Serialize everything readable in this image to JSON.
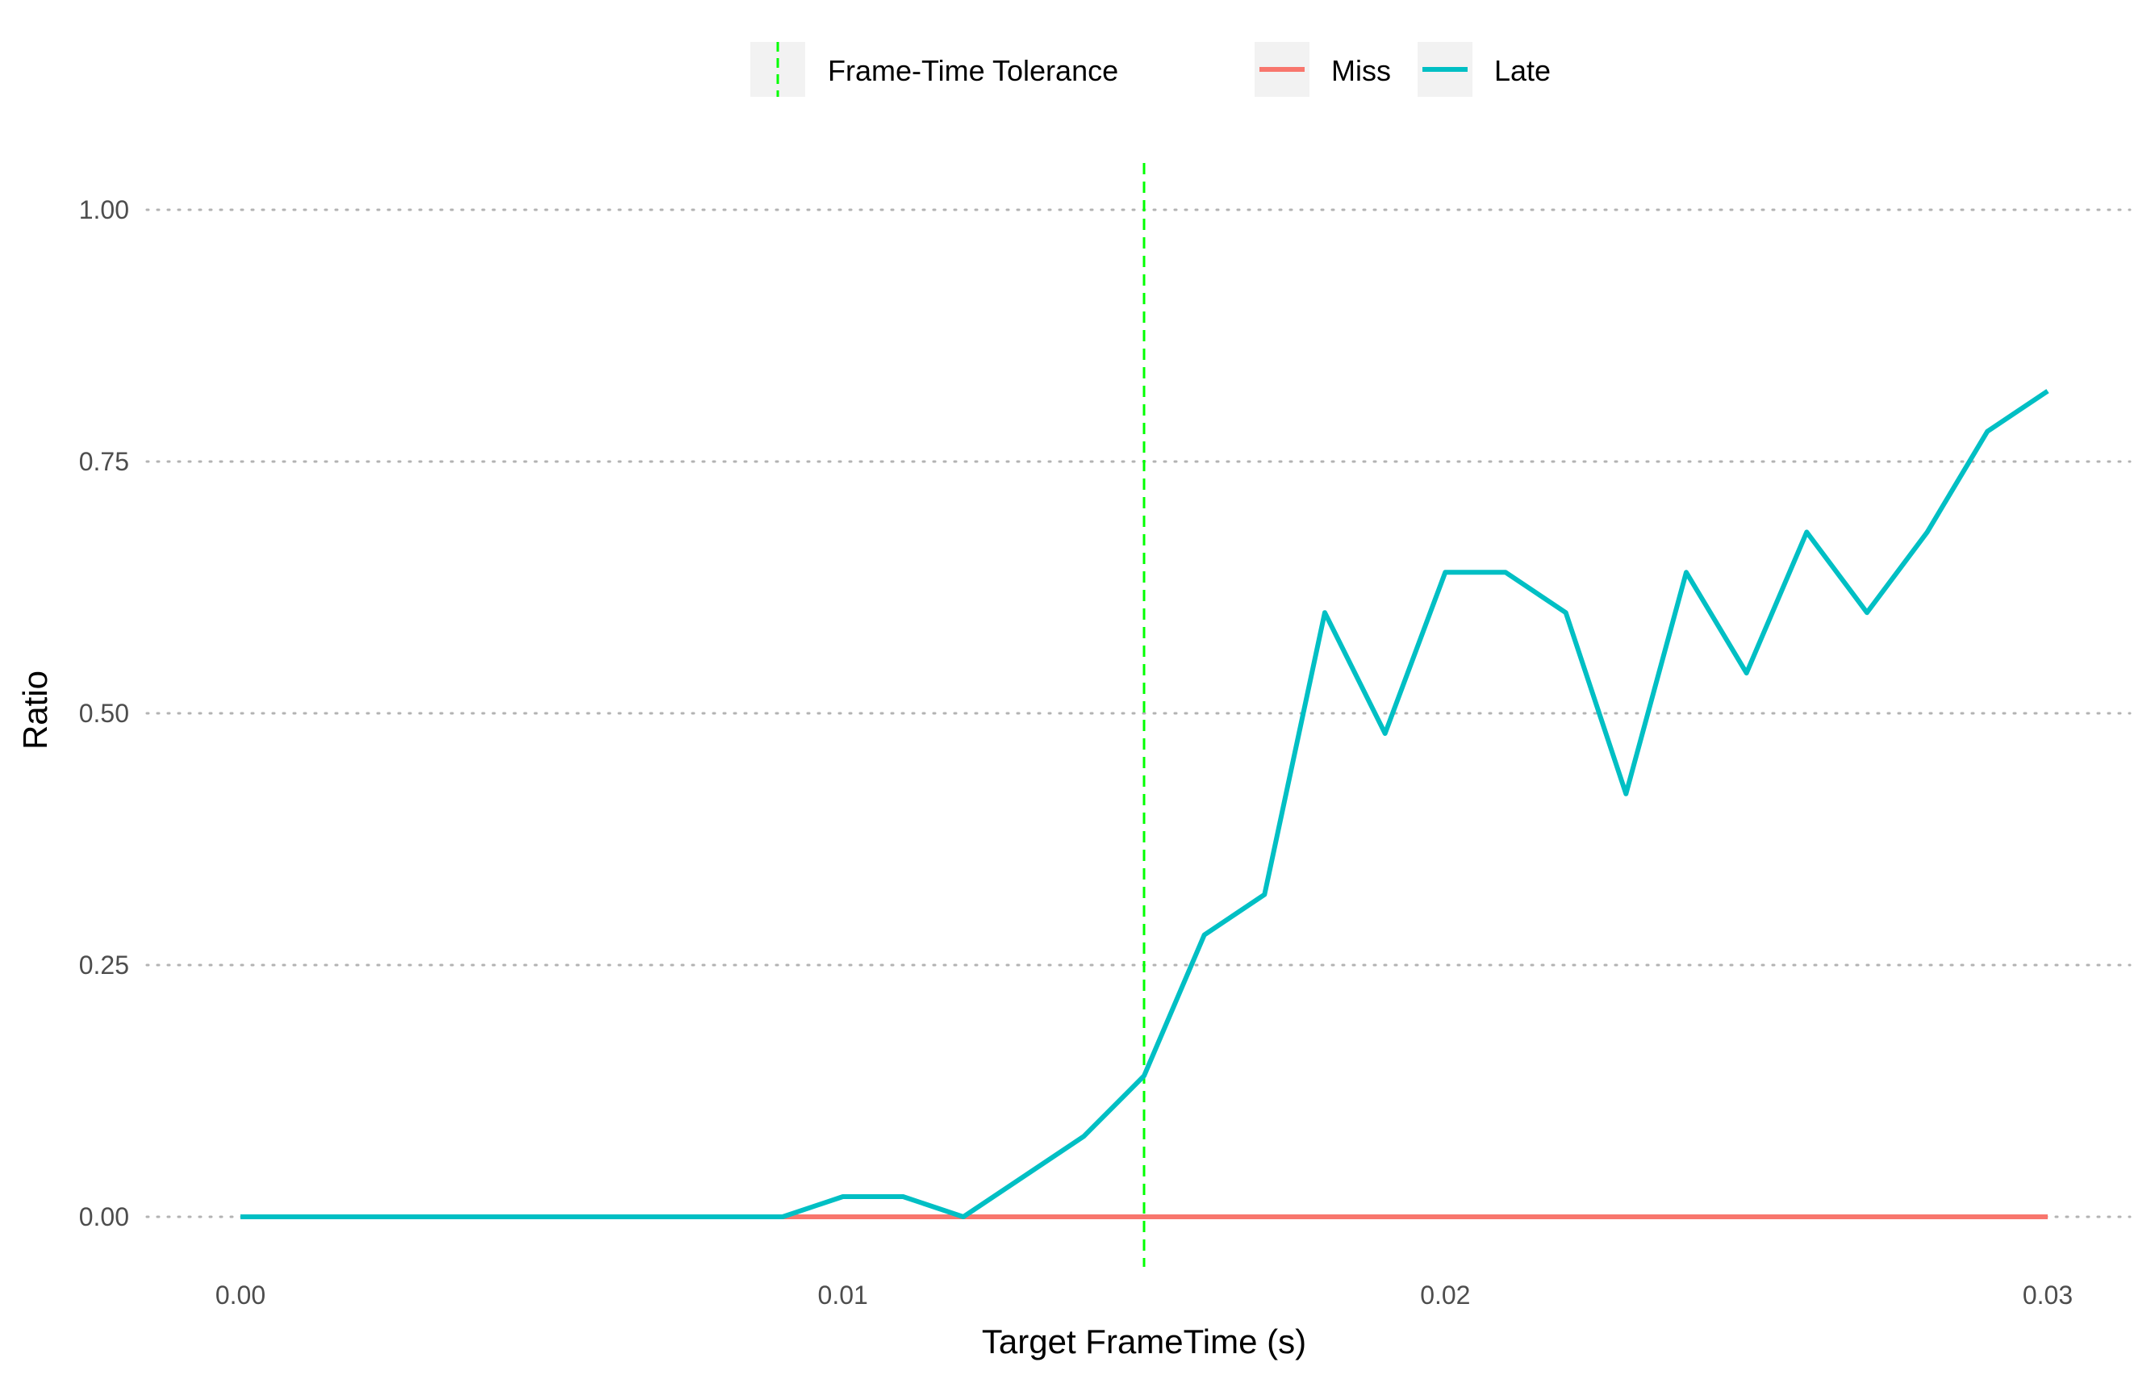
{
  "chart_data": {
    "type": "line",
    "xlabel": "Target FrameTime (s)",
    "ylabel": "Ratio",
    "xlim": [
      0.0,
      0.03
    ],
    "ylim": [
      0.0,
      1.0
    ],
    "x_ticks": [
      "0.00",
      "0.01",
      "0.02",
      "0.03"
    ],
    "y_ticks": [
      "0.00",
      "0.25",
      "0.50",
      "0.75",
      "1.00"
    ],
    "grid": "horizontal-dotted",
    "legend_position": "top",
    "reference_line": {
      "label": "Frame-Time Tolerance",
      "x": 0.015,
      "color": "#00FF00",
      "style": "dashed"
    },
    "series": [
      {
        "name": "Miss",
        "color": "#F8766D",
        "x": [
          0.0,
          0.001,
          0.002,
          0.003,
          0.004,
          0.005,
          0.006,
          0.007,
          0.008,
          0.009,
          0.01,
          0.011,
          0.012,
          0.013,
          0.014,
          0.015,
          0.016,
          0.017,
          0.018,
          0.019,
          0.02,
          0.021,
          0.022,
          0.023,
          0.024,
          0.025,
          0.026,
          0.027,
          0.028,
          0.029,
          0.03
        ],
        "values": [
          0,
          0,
          0,
          0,
          0,
          0,
          0,
          0,
          0,
          0,
          0,
          0,
          0,
          0,
          0,
          0,
          0,
          0,
          0,
          0,
          0,
          0,
          0,
          0,
          0,
          0,
          0,
          0,
          0,
          0,
          0
        ]
      },
      {
        "name": "Late",
        "color": "#00BFC4",
        "x": [
          0.0,
          0.001,
          0.002,
          0.003,
          0.004,
          0.005,
          0.006,
          0.007,
          0.008,
          0.009,
          0.01,
          0.011,
          0.012,
          0.013,
          0.014,
          0.015,
          0.016,
          0.017,
          0.018,
          0.019,
          0.02,
          0.021,
          0.022,
          0.023,
          0.024,
          0.025,
          0.026,
          0.027,
          0.028,
          0.029,
          0.03
        ],
        "values": [
          0,
          0,
          0,
          0,
          0,
          0,
          0,
          0,
          0,
          0,
          0.02,
          0.02,
          0,
          0.04,
          0.08,
          0.14,
          0.28,
          0.32,
          0.6,
          0.48,
          0.64,
          0.64,
          0.6,
          0.42,
          0.64,
          0.54,
          0.68,
          0.6,
          0.68,
          0.78,
          0.82
        ]
      }
    ]
  }
}
